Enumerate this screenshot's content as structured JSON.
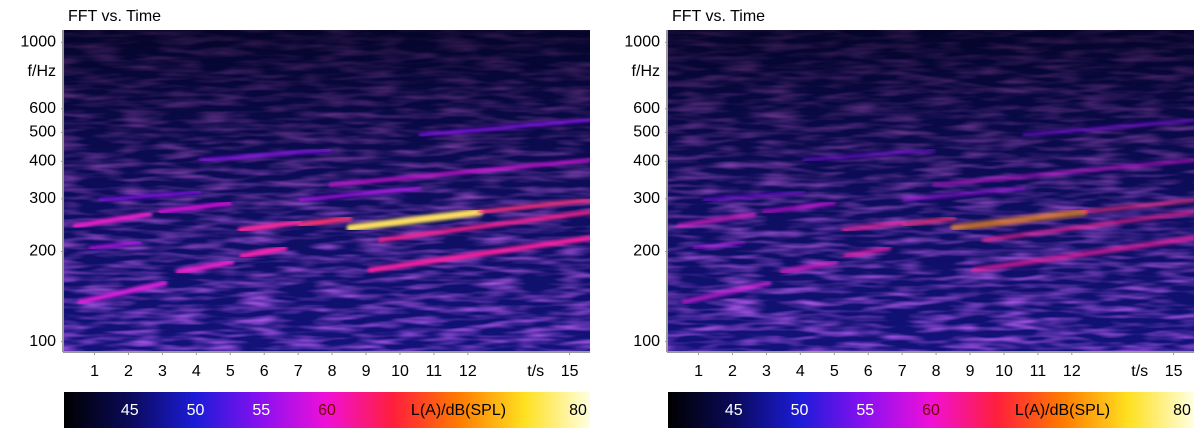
{
  "chart_data": [
    {
      "type": "spectrogram",
      "title": "FFT vs. Time",
      "y_label": "f/Hz",
      "x_label": "t/s",
      "xlim": [
        0.1,
        15.6
      ],
      "xticks": [
        1,
        2,
        3,
        4,
        5,
        6,
        7,
        8,
        9,
        10,
        11,
        12,
        15
      ],
      "ylim": [
        93,
        1100
      ],
      "yticks": [
        100,
        200,
        300,
        400,
        500,
        600,
        1000
      ],
      "y_scale": "log",
      "colorbar": {
        "label": "L(A)/dB(SPL)",
        "clim": [
          40,
          80
        ],
        "ticks": [
          45,
          50,
          55,
          60,
          80
        ],
        "colormap": [
          "#000000",
          "#0a0a5a",
          "#1c1cd8",
          "#8a10f0",
          "#f010d8",
          "#ff1e3c",
          "#ff7a00",
          "#ffe020",
          "#ffffe0"
        ]
      }
    },
    {
      "type": "spectrogram",
      "title": "FFT vs. Time",
      "y_label": "f/Hz",
      "x_label": "t/s",
      "xlim": [
        0.1,
        15.6
      ],
      "xticks": [
        1,
        2,
        3,
        4,
        5,
        6,
        7,
        8,
        9,
        10,
        11,
        12,
        15
      ],
      "ylim": [
        93,
        1100
      ],
      "yticks": [
        100,
        200,
        300,
        400,
        500,
        600,
        1000
      ],
      "y_scale": "log",
      "colorbar": {
        "label": "L(A)/dB(SPL)",
        "clim": [
          40,
          80
        ],
        "ticks": [
          45,
          50,
          55,
          60,
          80
        ],
        "colormap": [
          "#000000",
          "#0a0a5a",
          "#1c1cd8",
          "#8a10f0",
          "#f010d8",
          "#ff1e3c",
          "#ff7a00",
          "#ffe020",
          "#ffffe0"
        ]
      }
    }
  ]
}
